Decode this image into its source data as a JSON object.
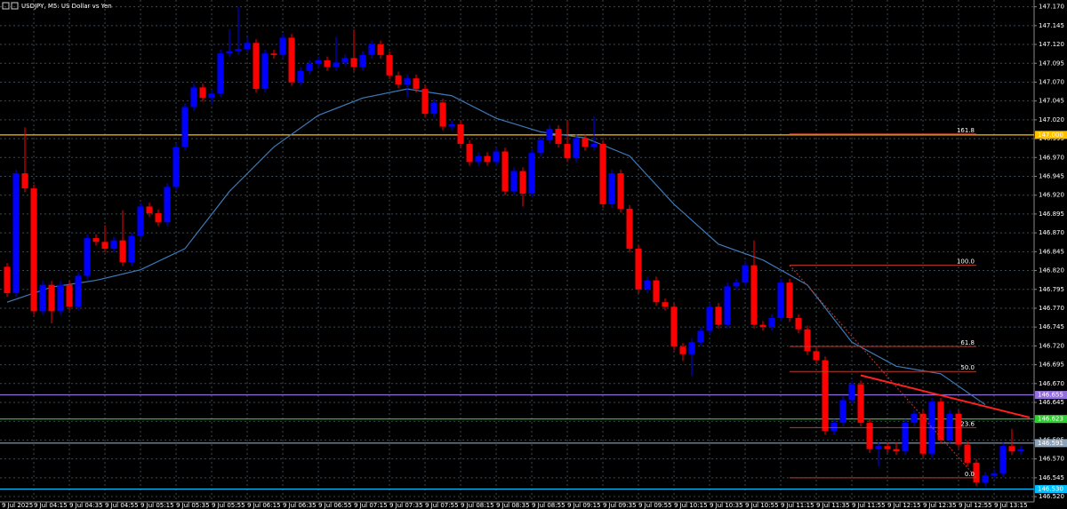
{
  "chart_data": {
    "type": "candlestick",
    "title": "USDJPY, M5: US Dollar vs Yen",
    "up_color": "#0000ff",
    "down_color": "#ff0000",
    "categories": [
      "9 Jul 2025",
      null,
      null,
      "9 Jul 04:15",
      null,
      null,
      null,
      "9 Jul 04:35",
      null,
      null,
      null,
      "9 Jul 04:55",
      null,
      null,
      null,
      "9 Jul 05:15",
      null,
      null,
      null,
      "9 Jul 05:35",
      null,
      null,
      null,
      "9 Jul 05:55",
      null,
      null,
      null,
      "9 Jul 06:15",
      null,
      null,
      null,
      "9 Jul 06:35",
      null,
      null,
      null,
      "9 Jul 06:55",
      null,
      null,
      null,
      "9 Jul 07:15",
      null,
      null,
      null,
      "9 Jul 07:35",
      null,
      null,
      null,
      "9 Jul 07:55",
      null,
      null,
      null,
      "9 Jul 08:15",
      null,
      null,
      null,
      "9 Jul 08:35",
      null,
      null,
      null,
      "9 Jul 08:55",
      null,
      null,
      null,
      "9 Jul 09:15",
      null,
      null,
      null,
      "9 Jul 09:35",
      null,
      null,
      null,
      "9 Jul 09:55",
      null,
      null,
      null,
      "9 Jul 10:15",
      null,
      null,
      null,
      "9 Jul 10:35",
      null,
      null,
      null,
      "9 Jul 10:55",
      null,
      null,
      null,
      "9 Jul 11:15",
      null,
      null,
      null,
      "9 Jul 11:35",
      null,
      null,
      null,
      "9 Jul 11:55",
      null,
      null,
      null,
      "9 Jul 12:15",
      null,
      null,
      null,
      "9 Jul 12:35",
      null,
      null,
      null,
      "9 Jul 12:55",
      null,
      null,
      null,
      "9 Jul 13:15",
      null,
      null,
      null
    ],
    "open": [
      146.825,
      146.79,
      146.949,
      146.929,
      146.766,
      146.801,
      146.766,
      146.801,
      146.772,
      146.813,
      146.863,
      146.858,
      146.849,
      146.86,
      146.831,
      146.866,
      146.905,
      146.896,
      146.884,
      146.931,
      146.984,
      147.037,
      147.063,
      147.049,
      147.055,
      147.108,
      147.111,
      147.114,
      147.122,
      147.061,
      147.108,
      147.106,
      147.129,
      147.07,
      147.085,
      147.094,
      147.099,
      147.09,
      147.096,
      147.102,
      147.09,
      147.106,
      147.12,
      147.106,
      147.079,
      147.067,
      147.075,
      147.061,
      147.028,
      147.043,
      147.011,
      147.014,
      146.988,
      146.964,
      146.972,
      146.964,
      146.978,
      146.925,
      146.952,
      146.922,
      146.976,
      146.993,
      147.008,
      146.988,
      146.969,
      146.996,
      146.984,
      146.988,
      146.908,
      146.949,
      146.902,
      146.849,
      146.795,
      146.807,
      146.778,
      146.772,
      146.719,
      146.709,
      146.725,
      146.74,
      146.772,
      146.748,
      146.799,
      146.804,
      146.827,
      146.748,
      146.745,
      146.757,
      146.804,
      146.757,
      146.742,
      146.713,
      146.701,
      146.607,
      146.618,
      146.648,
      146.669,
      146.618,
      146.583,
      146.587,
      146.583,
      146.58,
      146.618,
      146.63,
      146.577,
      146.646,
      146.595,
      146.63,
      146.589,
      146.565,
      146.539,
      146.548,
      146.551,
      146.587,
      146.58
    ],
    "high": [
      146.83,
      146.954,
      147.01,
      146.934,
      146.806,
      146.806,
      146.806,
      146.806,
      146.818,
      146.868,
      146.868,
      146.88,
      146.865,
      146.9,
      146.871,
      146.91,
      146.91,
      146.901,
      146.936,
      146.989,
      147.042,
      147.068,
      147.068,
      147.06,
      147.113,
      147.14,
      147.17,
      147.13,
      147.127,
      147.113,
      147.113,
      147.134,
      147.134,
      147.09,
      147.099,
      147.104,
      147.104,
      147.13,
      147.107,
      147.14,
      147.111,
      147.125,
      147.125,
      147.111,
      147.084,
      147.08,
      147.08,
      147.066,
      147.048,
      147.048,
      147.019,
      147.019,
      146.993,
      146.977,
      146.977,
      146.983,
      146.983,
      146.957,
      146.957,
      146.981,
      146.998,
      147.013,
      147.013,
      147.02,
      147.001,
      147.001,
      147.025,
      146.993,
      146.954,
      146.954,
      146.907,
      146.854,
      146.812,
      146.812,
      146.783,
      146.777,
      146.724,
      146.73,
      146.745,
      146.777,
      146.777,
      146.804,
      146.809,
      146.832,
      146.86,
      146.753,
      146.762,
      146.809,
      146.809,
      146.762,
      146.747,
      146.718,
      146.706,
      146.623,
      146.653,
      146.674,
      146.674,
      146.623,
      146.592,
      146.592,
      146.592,
      146.623,
      146.635,
      146.635,
      146.651,
      146.651,
      146.635,
      146.635,
      146.594,
      146.57,
      146.553,
      146.556,
      146.592,
      146.61,
      146.588
    ],
    "low": [
      146.785,
      146.785,
      146.924,
      146.761,
      146.761,
      146.75,
      146.761,
      146.767,
      146.767,
      146.808,
      146.853,
      146.844,
      146.844,
      146.826,
      146.826,
      146.861,
      146.891,
      146.879,
      146.879,
      146.926,
      146.979,
      147.032,
      147.044,
      147.04,
      147.05,
      147.103,
      147.106,
      147.109,
      147.056,
      147.056,
      147.101,
      147.101,
      147.065,
      147.065,
      147.08,
      147.089,
      147.085,
      147.085,
      147.091,
      147.085,
      147.085,
      147.101,
      147.101,
      147.074,
      147.062,
      147.05,
      147.056,
      147.023,
      147.023,
      147.006,
      147.006,
      146.983,
      146.959,
      146.959,
      146.959,
      146.959,
      146.92,
      146.92,
      146.905,
      146.917,
      146.971,
      146.988,
      146.983,
      146.964,
      146.964,
      146.979,
      146.979,
      146.903,
      146.903,
      146.897,
      146.844,
      146.79,
      146.79,
      146.773,
      146.767,
      146.714,
      146.7,
      146.68,
      146.72,
      146.735,
      146.743,
      146.743,
      146.794,
      146.799,
      146.743,
      146.74,
      146.74,
      146.752,
      146.752,
      146.737,
      146.708,
      146.696,
      146.602,
      146.602,
      146.613,
      146.643,
      146.613,
      146.578,
      146.56,
      146.578,
      146.575,
      146.575,
      146.613,
      146.572,
      146.572,
      146.59,
      146.59,
      146.584,
      146.56,
      146.534,
      146.534,
      146.543,
      146.546,
      146.575,
      146.575
    ],
    "close": [
      146.79,
      146.949,
      146.929,
      146.766,
      146.801,
      146.766,
      146.801,
      146.772,
      146.813,
      146.863,
      146.858,
      146.849,
      146.86,
      146.831,
      146.866,
      146.905,
      146.896,
      146.884,
      146.931,
      146.984,
      147.037,
      147.063,
      147.049,
      147.055,
      147.108,
      147.111,
      147.114,
      147.122,
      147.061,
      147.108,
      147.106,
      147.129,
      147.07,
      147.085,
      147.094,
      147.099,
      147.09,
      147.096,
      147.102,
      147.09,
      147.106,
      147.12,
      147.106,
      147.079,
      147.067,
      147.075,
      147.061,
      147.028,
      147.043,
      147.011,
      147.014,
      146.988,
      146.964,
      146.972,
      146.964,
      146.978,
      146.925,
      146.952,
      146.922,
      146.976,
      146.993,
      147.008,
      146.988,
      146.969,
      146.996,
      146.984,
      146.988,
      146.908,
      146.949,
      146.902,
      146.849,
      146.795,
      146.807,
      146.778,
      146.772,
      146.719,
      146.709,
      146.725,
      146.74,
      146.772,
      146.748,
      146.799,
      146.804,
      146.827,
      146.748,
      146.745,
      146.757,
      146.804,
      146.757,
      146.742,
      146.713,
      146.701,
      146.607,
      146.618,
      146.648,
      146.669,
      146.618,
      146.583,
      146.587,
      146.583,
      146.58,
      146.618,
      146.63,
      146.577,
      146.646,
      146.595,
      146.63,
      146.589,
      146.565,
      146.539,
      146.548,
      146.551,
      146.587,
      146.58,
      146.583
    ],
    "xlim": [
      -0.8,
      115.5
    ],
    "ylim": [
      146.513,
      147.179
    ],
    "yticks": [
      {
        "value": 146.52,
        "label": "146.520"
      },
      146.545,
      {
        "value": 146.57,
        "label": "146.570"
      },
      146.595,
      {
        "value": 146.62,
        "label": "146.620"
      },
      146.645,
      {
        "value": 146.67,
        "label": "146.670"
      },
      146.695,
      {
        "value": 146.72,
        "label": "146.720"
      },
      146.745,
      {
        "value": 146.77,
        "label": "146.770"
      },
      146.795,
      {
        "value": 146.82,
        "label": "146.820"
      },
      146.845,
      {
        "value": 146.87,
        "label": "146.870"
      },
      146.895,
      {
        "value": 146.92,
        "label": "146.920"
      },
      146.945,
      {
        "value": 146.97,
        "label": "146.970"
      },
      146.995,
      {
        "value": 147.02,
        "label": "147.020"
      },
      147.045,
      {
        "value": 147.07,
        "label": "147.070"
      },
      147.095,
      {
        "value": 147.12,
        "label": "147.120"
      },
      147.145,
      {
        "value": 147.17,
        "label": "147.170"
      }
    ],
    "grid": true,
    "moving_average": {
      "color": "#3d7ab8",
      "x": [
        0,
        5,
        10,
        15,
        20,
        25,
        30,
        35,
        40,
        45,
        50,
        55,
        60,
        65,
        70,
        75,
        80,
        85,
        90,
        95,
        100,
        105,
        110
      ],
      "values": [
        146.778,
        146.798,
        146.807,
        146.821,
        146.849,
        146.925,
        146.984,
        147.026,
        147.049,
        147.061,
        147.052,
        147.022,
        147.004,
        146.996,
        146.972,
        146.908,
        146.855,
        146.834,
        146.801,
        146.725,
        146.693,
        146.683,
        146.642
      ]
    },
    "levels": [
      {
        "price": {
          "value": 147,
          "label": "147.000"
        },
        "color": "#ffc000"
      },
      {
        "price": 146.655,
        "color": "#9370db"
      },
      {
        "price": 146.623,
        "color": "#32cd32"
      },
      {
        "price": 146.591,
        "color": "#8fa3b8"
      },
      {
        "price": {
          "value": 146.53,
          "label": "146.530"
        },
        "color": "#00bfff"
      }
    ],
    "fibonacci": {
      "color": "#c0392b",
      "x": [
        88,
        109
      ],
      "prices": [
        146.827,
        146.545
      ],
      "levels": [
        161.8,
        {
          "value": 100,
          "label": "100.0"
        },
        61.8,
        {
          "value": 50,
          "label": "50.0"
        },
        23.6,
        {
          "value": 0,
          "label": "0.0"
        }
      ]
    },
    "trendline": {
      "color": "#ff2020",
      "x": [
        96,
        115
      ],
      "values": [
        146.681,
        146.625
      ]
    }
  }
}
